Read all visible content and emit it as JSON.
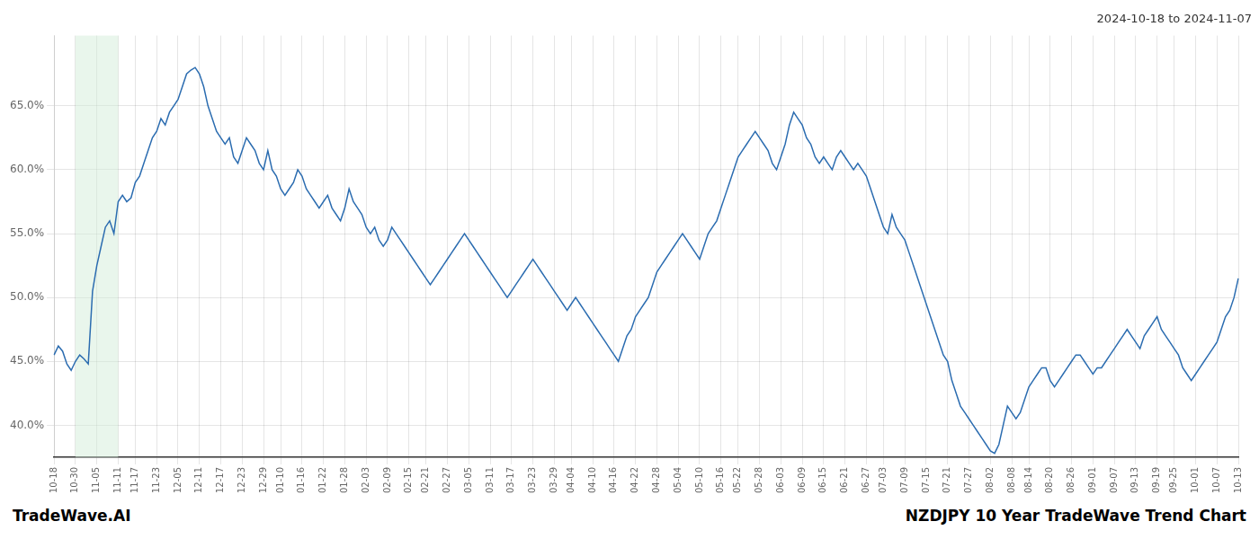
{
  "chart_data": {
    "type": "line",
    "title": "2024-10-18 to 2024-11-07",
    "annotations": [
      "TradeWave.AI",
      "NZDJPY 10 Year TradeWave Trend Chart"
    ],
    "color": "#2b6cb0",
    "grid": true,
    "shade": {
      "start": "10-30",
      "end": "11-11",
      "color": "#d4edda"
    },
    "ylim": [
      37.5,
      70.5
    ],
    "yticks": [
      {
        "value": 40.0,
        "label": "40.0%"
      },
      {
        "value": 45.0,
        "label": "45.0%"
      },
      {
        "value": 50.0,
        "label": "50.0%"
      },
      {
        "value": 55.0,
        "label": "55.0%"
      },
      {
        "value": 60.0,
        "label": "60.0%"
      },
      {
        "value": 65.0,
        "label": "65.0%"
      }
    ],
    "categories": [
      "10-18",
      null,
      null,
      null,
      null,
      "10-30",
      null,
      null,
      null,
      null,
      "11-05",
      null,
      null,
      null,
      null,
      "11-11",
      null,
      null,
      null,
      "11-17",
      null,
      null,
      null,
      null,
      "11-23",
      null,
      null,
      null,
      null,
      "12-05",
      null,
      null,
      null,
      null,
      "12-11",
      null,
      null,
      null,
      null,
      "12-17",
      null,
      null,
      null,
      null,
      "12-23",
      null,
      null,
      null,
      null,
      "12-29",
      null,
      null,
      null,
      "01-10",
      null,
      null,
      null,
      null,
      "01-16",
      null,
      null,
      null,
      null,
      "01-22",
      null,
      null,
      null,
      null,
      "01-28",
      null,
      null,
      null,
      null,
      "02-03",
      null,
      null,
      null,
      null,
      "02-09",
      null,
      null,
      null,
      null,
      "02-15",
      null,
      null,
      null,
      "02-21",
      null,
      null,
      null,
      null,
      "02-27",
      null,
      null,
      null,
      null,
      "03-05",
      null,
      null,
      null,
      null,
      "03-11",
      null,
      null,
      null,
      null,
      "03-17",
      null,
      null,
      null,
      null,
      "03-23",
      null,
      null,
      null,
      null,
      "03-29",
      null,
      null,
      null,
      "04-04",
      null,
      null,
      null,
      null,
      "04-10",
      null,
      null,
      null,
      null,
      "04-16",
      null,
      null,
      null,
      null,
      "04-22",
      null,
      null,
      null,
      null,
      "04-28",
      null,
      null,
      null,
      null,
      "05-04",
      null,
      null,
      null,
      null,
      "05-10",
      null,
      null,
      null,
      null,
      "05-16",
      null,
      null,
      null,
      "05-22",
      null,
      null,
      null,
      null,
      "05-28",
      null,
      null,
      null,
      null,
      "06-03",
      null,
      null,
      null,
      null,
      "06-09",
      null,
      null,
      null,
      null,
      "06-15",
      null,
      null,
      null,
      null,
      "06-21",
      null,
      null,
      null,
      null,
      "06-27",
      null,
      null,
      null,
      "07-03",
      null,
      null,
      null,
      null,
      "07-09",
      null,
      null,
      null,
      null,
      "07-15",
      null,
      null,
      null,
      null,
      "07-21",
      null,
      null,
      null,
      null,
      "07-27",
      null,
      null,
      null,
      null,
      "08-02",
      null,
      null,
      null,
      null,
      "08-08",
      null,
      null,
      null,
      "08-14",
      null,
      null,
      null,
      null,
      "08-20",
      null,
      null,
      null,
      null,
      "08-26",
      null,
      null,
      null,
      null,
      "09-01",
      null,
      null,
      null,
      null,
      "09-07",
      null,
      null,
      null,
      null,
      "09-13",
      null,
      null,
      null,
      null,
      "09-19",
      null,
      null,
      null,
      "09-25",
      null,
      null,
      null,
      null,
      "10-01",
      null,
      null,
      null,
      null,
      "10-07",
      null,
      null,
      null,
      null,
      "10-13"
    ],
    "values": [
      45.5,
      46.2,
      45.8,
      44.8,
      44.3,
      45.0,
      45.5,
      45.2,
      44.8,
      50.5,
      52.5,
      54.0,
      55.5,
      56.0,
      55.0,
      57.5,
      58.0,
      57.5,
      57.8,
      59.0,
      59.5,
      60.5,
      61.5,
      62.5,
      63.0,
      64.0,
      63.5,
      64.5,
      65.0,
      65.5,
      66.5,
      67.5,
      67.8,
      68.0,
      67.5,
      66.5,
      65.0,
      64.0,
      63.0,
      62.5,
      62.0,
      62.5,
      61.0,
      60.5,
      61.5,
      62.5,
      62.0,
      61.5,
      60.5,
      60.0,
      61.5,
      60.0,
      59.5,
      58.5,
      58.0,
      58.5,
      59.0,
      60.0,
      59.5,
      58.5,
      58.0,
      57.5,
      57.0,
      57.5,
      58.0,
      57.0,
      56.5,
      56.0,
      57.0,
      58.5,
      57.5,
      57.0,
      56.5,
      55.5,
      55.0,
      55.5,
      54.5,
      54.0,
      54.5,
      55.5,
      55.0,
      54.5,
      54.0,
      53.5,
      53.0,
      52.5,
      52.0,
      51.5,
      51.0,
      51.5,
      52.0,
      52.5,
      53.0,
      53.5,
      54.0,
      54.5,
      55.0,
      54.5,
      54.0,
      53.5,
      53.0,
      52.5,
      52.0,
      51.5,
      51.0,
      50.5,
      50.0,
      50.5,
      51.0,
      51.5,
      52.0,
      52.5,
      53.0,
      52.5,
      52.0,
      51.5,
      51.0,
      50.5,
      50.0,
      49.5,
      49.0,
      49.5,
      50.0,
      49.5,
      49.0,
      48.5,
      48.0,
      47.5,
      47.0,
      46.5,
      46.0,
      45.5,
      45.0,
      46.0,
      47.0,
      47.5,
      48.5,
      49.0,
      49.5,
      50.0,
      51.0,
      52.0,
      52.5,
      53.0,
      53.5,
      54.0,
      54.5,
      55.0,
      54.5,
      54.0,
      53.5,
      53.0,
      54.0,
      55.0,
      55.5,
      56.0,
      57.0,
      58.0,
      59.0,
      60.0,
      61.0,
      61.5,
      62.0,
      62.5,
      63.0,
      62.5,
      62.0,
      61.5,
      60.5,
      60.0,
      61.0,
      62.0,
      63.5,
      64.5,
      64.0,
      63.5,
      62.5,
      62.0,
      61.0,
      60.5,
      61.0,
      60.5,
      60.0,
      61.0,
      61.5,
      61.0,
      60.5,
      60.0,
      60.5,
      60.0,
      59.5,
      58.5,
      57.5,
      56.5,
      55.5,
      55.0,
      56.5,
      55.5,
      55.0,
      54.5,
      53.5,
      52.5,
      51.5,
      50.5,
      49.5,
      48.5,
      47.5,
      46.5,
      45.5,
      45.0,
      43.5,
      42.5,
      41.5,
      41.0,
      40.5,
      40.0,
      39.5,
      39.0,
      38.5,
      38.0,
      37.8,
      38.5,
      40.0,
      41.5,
      41.0,
      40.5,
      41.0,
      42.0,
      43.0,
      43.5,
      44.0,
      44.5,
      44.5,
      43.5,
      43.0,
      43.5,
      44.0,
      44.5,
      45.0,
      45.5,
      45.5,
      45.0,
      44.5,
      44.0,
      44.5,
      44.5,
      45.0,
      45.5,
      46.0,
      46.5,
      47.0,
      47.5,
      47.0,
      46.5,
      46.0,
      47.0,
      47.5,
      48.0,
      48.5,
      47.5,
      47.0,
      46.5,
      46.0,
      45.5,
      44.5,
      44.0,
      43.5,
      44.0,
      44.5,
      45.0,
      45.5,
      46.0,
      46.5,
      47.5,
      48.5,
      49.0,
      50.0,
      51.5
    ]
  }
}
